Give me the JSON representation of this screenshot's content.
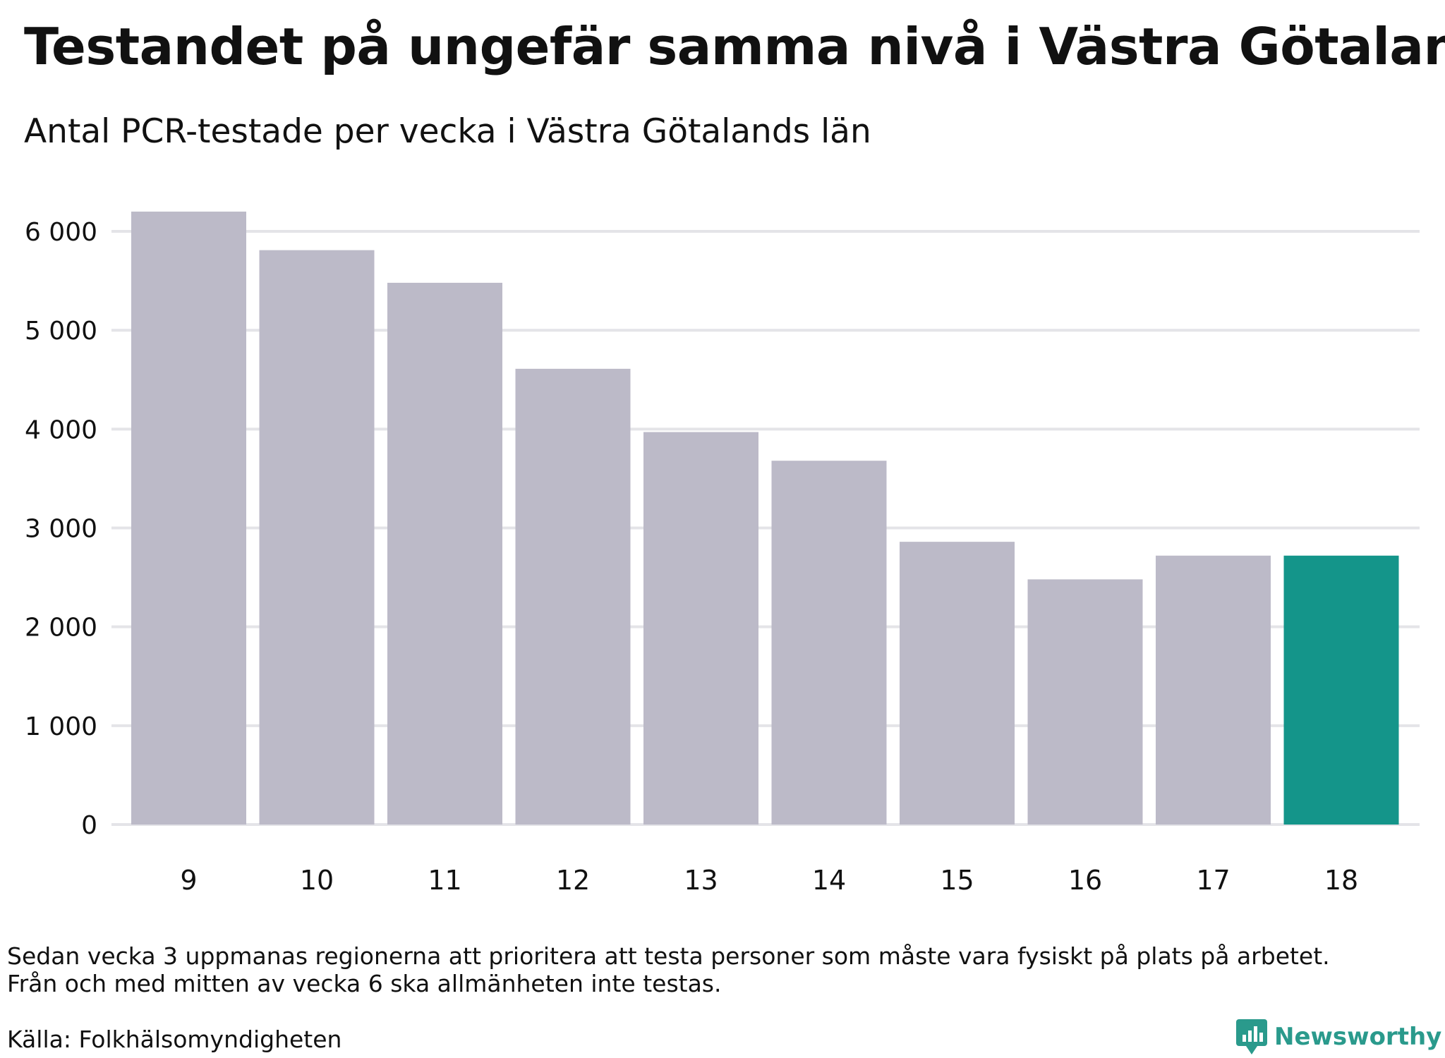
{
  "title": "Testandet på ungefär samma nivå i Västra Götaland",
  "subtitle": "Antal PCR-testade per vecka i Västra Götalands län",
  "note_lines": [
    "Sedan vecka 3 uppmanas regionerna att prioritera att testa personer som måste vara fysiskt på plats på arbetet.",
    "Från och med mitten av vecka 6 ska allmänheten inte testas."
  ],
  "source": "Källa: Folkhälsomyndigheten",
  "brand": {
    "name": "Newsworthy",
    "icon": "newsworthy-logo-icon"
  },
  "colors": {
    "bar": "#bcbac8",
    "highlight": "#14958a",
    "grid": "#e4e4e8",
    "brand": "#2a9a8c"
  },
  "chart_data": {
    "type": "bar",
    "title": "Testandet på ungefär samma nivå i Västra Götaland",
    "subtitle": "Antal PCR-testade per vecka i Västra Götalands län",
    "xlabel": "",
    "ylabel": "",
    "categories": [
      "9",
      "10",
      "11",
      "12",
      "13",
      "14",
      "15",
      "16",
      "17",
      "18"
    ],
    "values": [
      6200,
      5810,
      5480,
      4610,
      3970,
      3680,
      2860,
      2480,
      2720,
      2720
    ],
    "highlight_index": 9,
    "ylim": [
      0,
      6200
    ],
    "yticks": [
      0,
      1000,
      2000,
      3000,
      4000,
      5000,
      6000
    ],
    "ytick_labels": [
      "0",
      "1 000",
      "2 000",
      "3 000",
      "4 000",
      "5 000",
      "6 000"
    ],
    "grid": true
  }
}
